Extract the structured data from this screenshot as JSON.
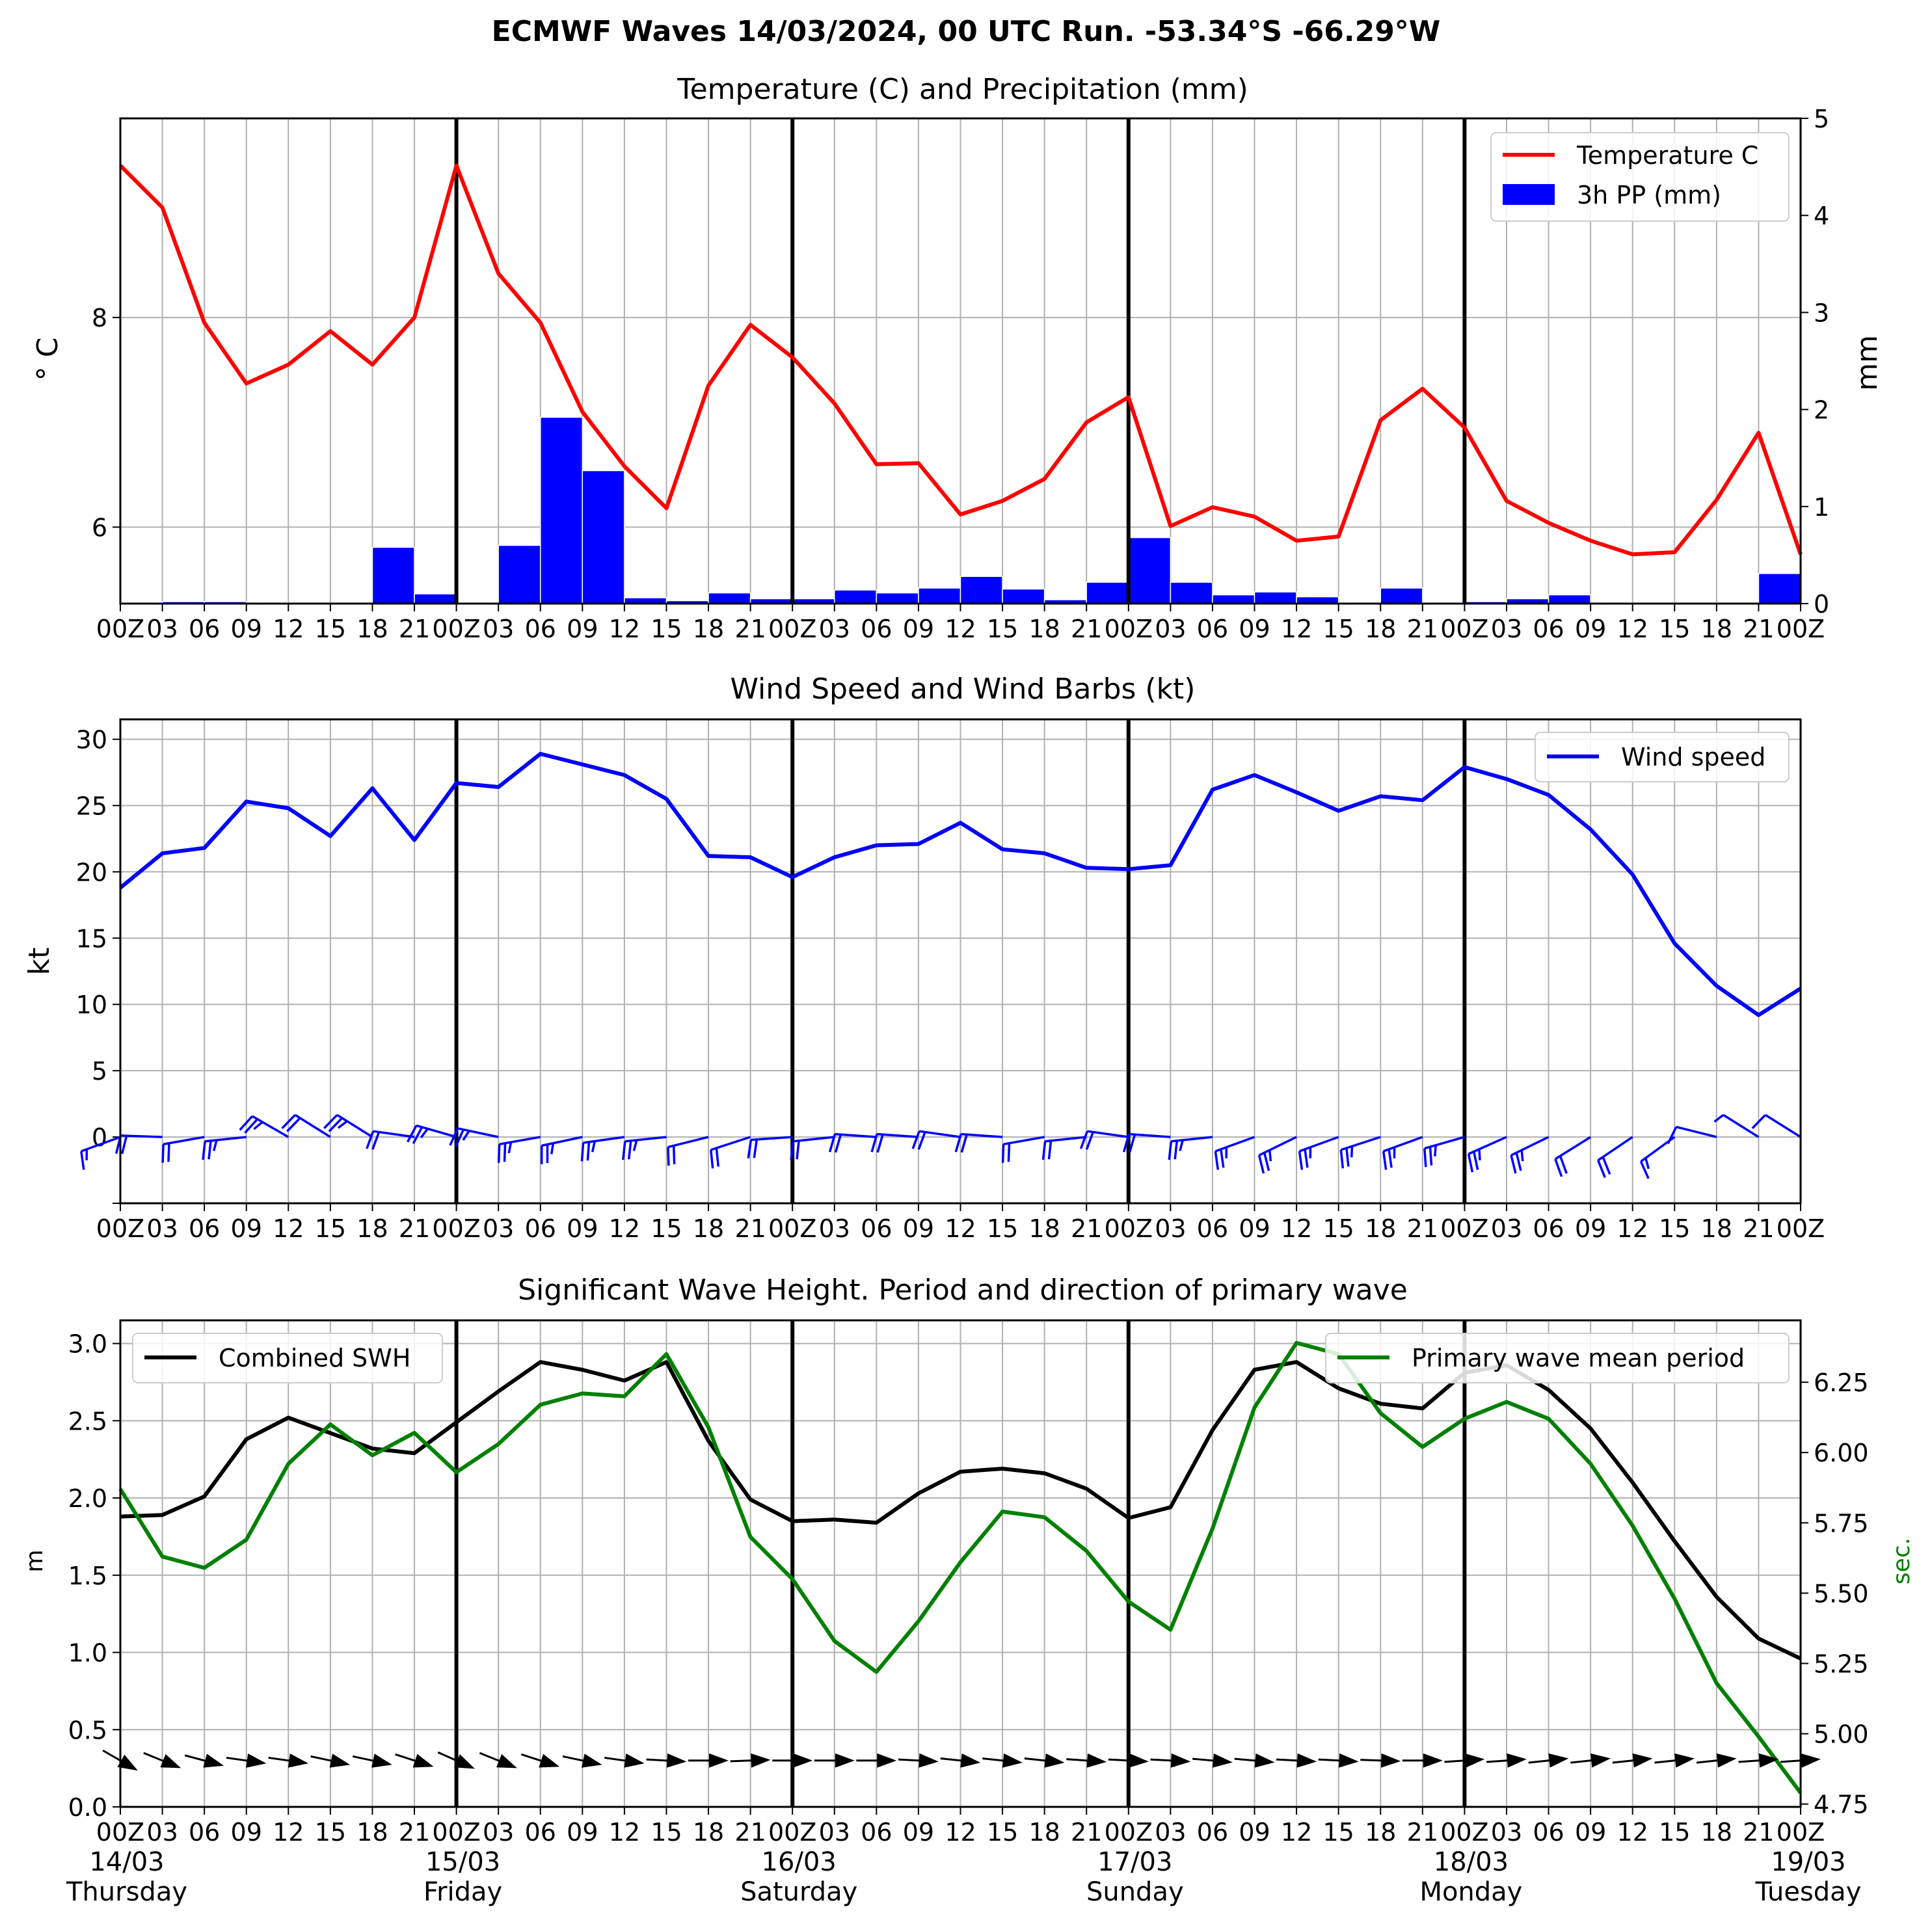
{
  "figure_title": "ECMWF Waves 14/03/2024, 00 UTC Run. -53.34°S -66.29°W",
  "colors": {
    "temperature": "#ff0000",
    "precip": "#0000ff",
    "wind": "#0000ff",
    "swh": "#000000",
    "period": "#008000",
    "grid": "#b0b0b0"
  },
  "time_ticks": [
    "00Z",
    "03",
    "06",
    "09",
    "12",
    "15",
    "18",
    "21",
    "00Z",
    "03",
    "06",
    "09",
    "12",
    "15",
    "18",
    "21",
    "00Z",
    "03",
    "06",
    "09",
    "12",
    "15",
    "18",
    "21",
    "00Z",
    "03",
    "06",
    "09",
    "12",
    "15",
    "18",
    "21",
    "00Z",
    "03",
    "06",
    "09",
    "12",
    "15",
    "18",
    "21",
    "00Z"
  ],
  "day_labels": [
    {
      "date": "14/03",
      "day": "Thursday"
    },
    {
      "date": "15/03",
      "day": "Friday"
    },
    {
      "date": "16/03",
      "day": "Saturday"
    },
    {
      "date": "17/03",
      "day": "Sunday"
    },
    {
      "date": "18/03",
      "day": "Monday"
    },
    {
      "date": "19/03",
      "day": "Tuesday"
    }
  ],
  "chart_data": [
    {
      "type": "line",
      "title": "Temperature (C) and Precipitation (mm)",
      "ylabel": "$^\\circ$C",
      "ylabel_display": "° C",
      "y2label": "mm",
      "ylim": [
        5.27,
        9.9
      ],
      "y2lim": [
        0,
        5
      ],
      "yticks": [
        6,
        8
      ],
      "y2ticks": [
        0,
        1,
        2,
        3,
        4,
        5
      ],
      "legend_position": "top-right",
      "legend": [
        "Temperature C",
        "3h PP (mm)"
      ],
      "series": [
        {
          "name": "Temperature C",
          "color": "#ff0000",
          "values": [
            9.45,
            9.05,
            7.95,
            7.37,
            7.55,
            7.87,
            7.55,
            8.0,
            9.45,
            8.42,
            7.95,
            7.1,
            6.58,
            6.18,
            7.35,
            7.93,
            7.62,
            7.18,
            6.6,
            6.61,
            6.12,
            6.25,
            6.46,
            7.0,
            7.24,
            6.01,
            6.19,
            6.1,
            5.87,
            5.91,
            7.02,
            7.32,
            6.95,
            6.25,
            6.04,
            5.87,
            5.74,
            5.76,
            6.26,
            6.9,
            5.74
          ]
        },
        {
          "name": "3h PP (mm)",
          "type": "bar",
          "color": "#0000ff",
          "values": [
            0,
            0.02,
            0.02,
            0,
            0,
            0,
            0.58,
            0.1,
            0,
            0.6,
            1.92,
            1.37,
            0.06,
            0.03,
            0.11,
            0.05,
            0.05,
            0.14,
            0.11,
            0.16,
            0.28,
            0.15,
            0.04,
            0.22,
            0.68,
            0.22,
            0.09,
            0.12,
            0.07,
            0,
            0.16,
            0,
            0.02,
            0.05,
            0.09,
            0,
            0,
            0,
            0,
            0.31
          ]
        }
      ]
    },
    {
      "type": "line",
      "title": "Wind Speed and Wind Barbs (kt)",
      "ylabel": "kt",
      "ylim": [
        -5,
        31.5
      ],
      "yticks": [
        0,
        5,
        10,
        15,
        20,
        25,
        30
      ],
      "legend_position": "top-right",
      "legend": [
        "Wind speed"
      ],
      "series": [
        {
          "name": "Wind speed",
          "color": "#0000ff",
          "values": [
            18.8,
            21.4,
            21.8,
            25.3,
            24.8,
            22.7,
            26.3,
            22.4,
            26.7,
            26.4,
            28.9,
            28.1,
            27.3,
            25.5,
            21.2,
            21.1,
            19.6,
            21.1,
            22.0,
            22.1,
            23.7,
            21.7,
            21.4,
            20.3,
            20.2,
            20.5,
            26.2,
            27.3,
            26.0,
            24.6,
            25.7,
            25.4,
            27.9,
            27.0,
            25.8,
            23.2,
            19.8,
            14.6,
            11.4,
            9.2,
            11.2
          ]
        },
        {
          "name": "Wind barbs",
          "angle_deg": [
            200,
            178,
            190,
            186,
            150,
            148,
            148,
            172,
            164,
            168,
            190,
            192,
            188,
            186,
            194,
            198,
            184,
            186,
            176,
            176,
            172,
            176,
            190,
            186,
            172,
            176,
            186,
            200,
            206,
            200,
            198,
            200,
            196,
            204,
            206,
            212,
            214,
            216,
            166,
            148,
            148
          ],
          "barb_speed_kt": [
            19,
            21,
            22,
            25,
            25,
            23,
            26,
            22,
            27,
            26,
            29,
            28,
            27,
            26,
            21,
            21,
            20,
            21,
            22,
            22,
            24,
            22,
            21,
            20,
            20,
            21,
            26,
            27,
            26,
            25,
            26,
            25,
            28,
            27,
            26,
            23,
            20,
            15,
            11,
            9,
            11
          ]
        }
      ]
    },
    {
      "type": "line",
      "title": "Significant Wave Height. Period and direction of primary wave",
      "ylabel": "m",
      "y2label": "sec.",
      "ylim": [
        0,
        3.15
      ],
      "y2lim": [
        4.74,
        6.47
      ],
      "yticks": [
        0.0,
        0.5,
        1.0,
        1.5,
        2.0,
        2.5,
        3.0
      ],
      "y2ticks": [
        4.75,
        5.0,
        5.25,
        5.5,
        5.75,
        6.0,
        6.25
      ],
      "legend": [
        "Combined SWH",
        "Primary wave mean period"
      ],
      "legend_positions": [
        "top-left",
        "top-right"
      ],
      "series": [
        {
          "name": "Combined SWH",
          "color": "#000000",
          "values": [
            1.88,
            1.89,
            2.01,
            2.38,
            2.52,
            2.42,
            2.32,
            2.29,
            2.49,
            2.69,
            2.88,
            2.83,
            2.76,
            2.88,
            2.37,
            1.99,
            1.85,
            1.86,
            1.84,
            2.03,
            2.17,
            2.19,
            2.16,
            2.06,
            1.87,
            1.94,
            2.44,
            2.83,
            2.88,
            2.71,
            2.61,
            2.58,
            2.81,
            2.86,
            2.7,
            2.45,
            2.1,
            1.72,
            1.36,
            1.09,
            0.96
          ]
        },
        {
          "name": "Primary wave mean period",
          "color": "#008000",
          "values": [
            5.87,
            5.63,
            5.59,
            5.69,
            5.96,
            6.1,
            5.99,
            6.07,
            5.93,
            6.03,
            6.17,
            6.21,
            6.2,
            6.35,
            6.09,
            5.7,
            5.55,
            5.33,
            5.22,
            5.4,
            5.61,
            5.79,
            5.77,
            5.65,
            5.47,
            5.37,
            5.73,
            6.16,
            6.39,
            6.35,
            6.14,
            6.02,
            6.12,
            6.18,
            6.12,
            5.96,
            5.74,
            5.48,
            5.18,
            4.99,
            4.79
          ]
        },
        {
          "name": "Primary wave direction",
          "angle_deg": [
            -30,
            -22,
            -15,
            -8,
            -8,
            -12,
            -12,
            -18,
            -24,
            -22,
            -18,
            -12,
            -8,
            -3,
            0,
            2,
            0,
            0,
            0,
            -3,
            -6,
            -6,
            -6,
            -4,
            -3,
            -3,
            -5,
            -5,
            -3,
            -3,
            -2,
            0,
            4,
            4,
            6,
            6,
            6,
            6,
            6,
            4,
            4
          ]
        }
      ]
    }
  ]
}
